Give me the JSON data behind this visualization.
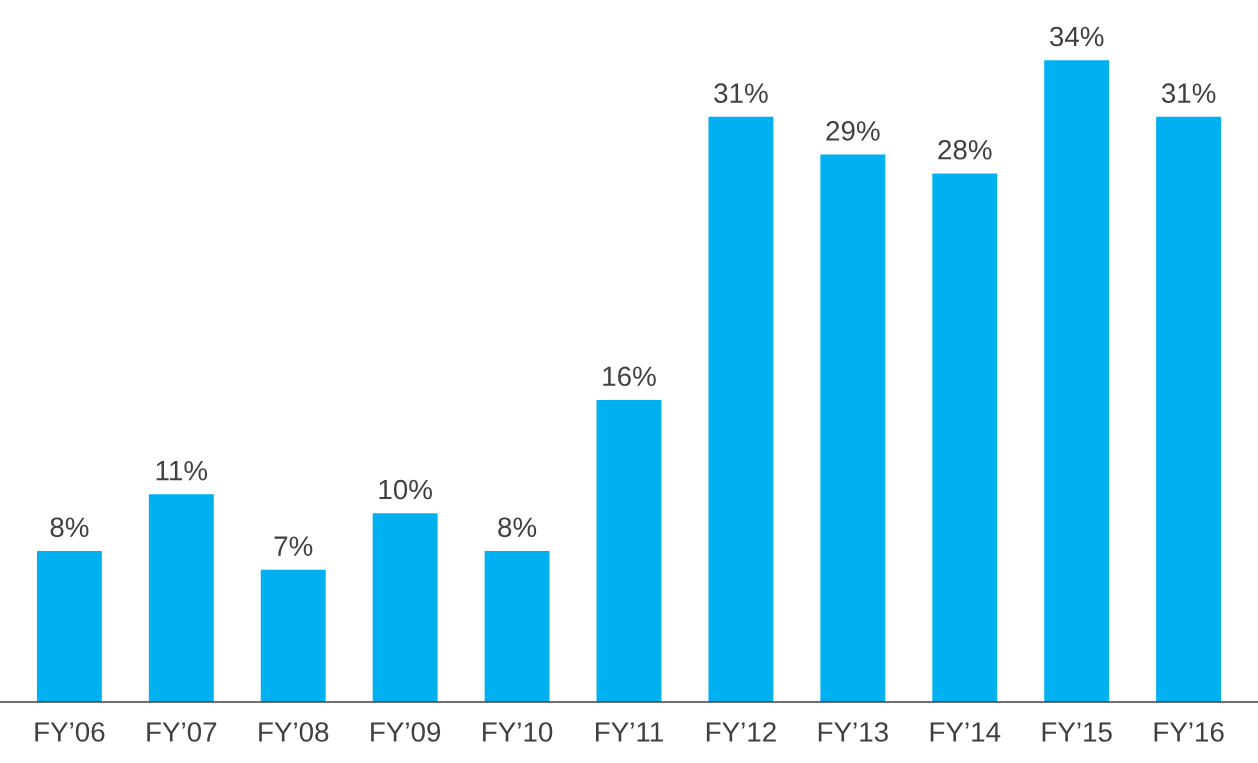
{
  "chart_data": {
    "type": "bar",
    "categories": [
      "FY’06",
      "FY’07",
      "FY’08",
      "FY’09",
      "FY’10",
      "FY’11",
      "FY’12",
      "FY’13",
      "FY’14",
      "FY’15",
      "FY’16"
    ],
    "values": [
      8,
      11,
      7,
      10,
      8,
      16,
      31,
      29,
      28,
      34,
      31
    ],
    "value_labels": [
      "8%",
      "11%",
      "7%",
      "10%",
      "8%",
      "16%",
      "31%",
      "29%",
      "28%",
      "34%",
      "31%"
    ],
    "color": "#00b0f0",
    "grid": false,
    "legend": false
  }
}
